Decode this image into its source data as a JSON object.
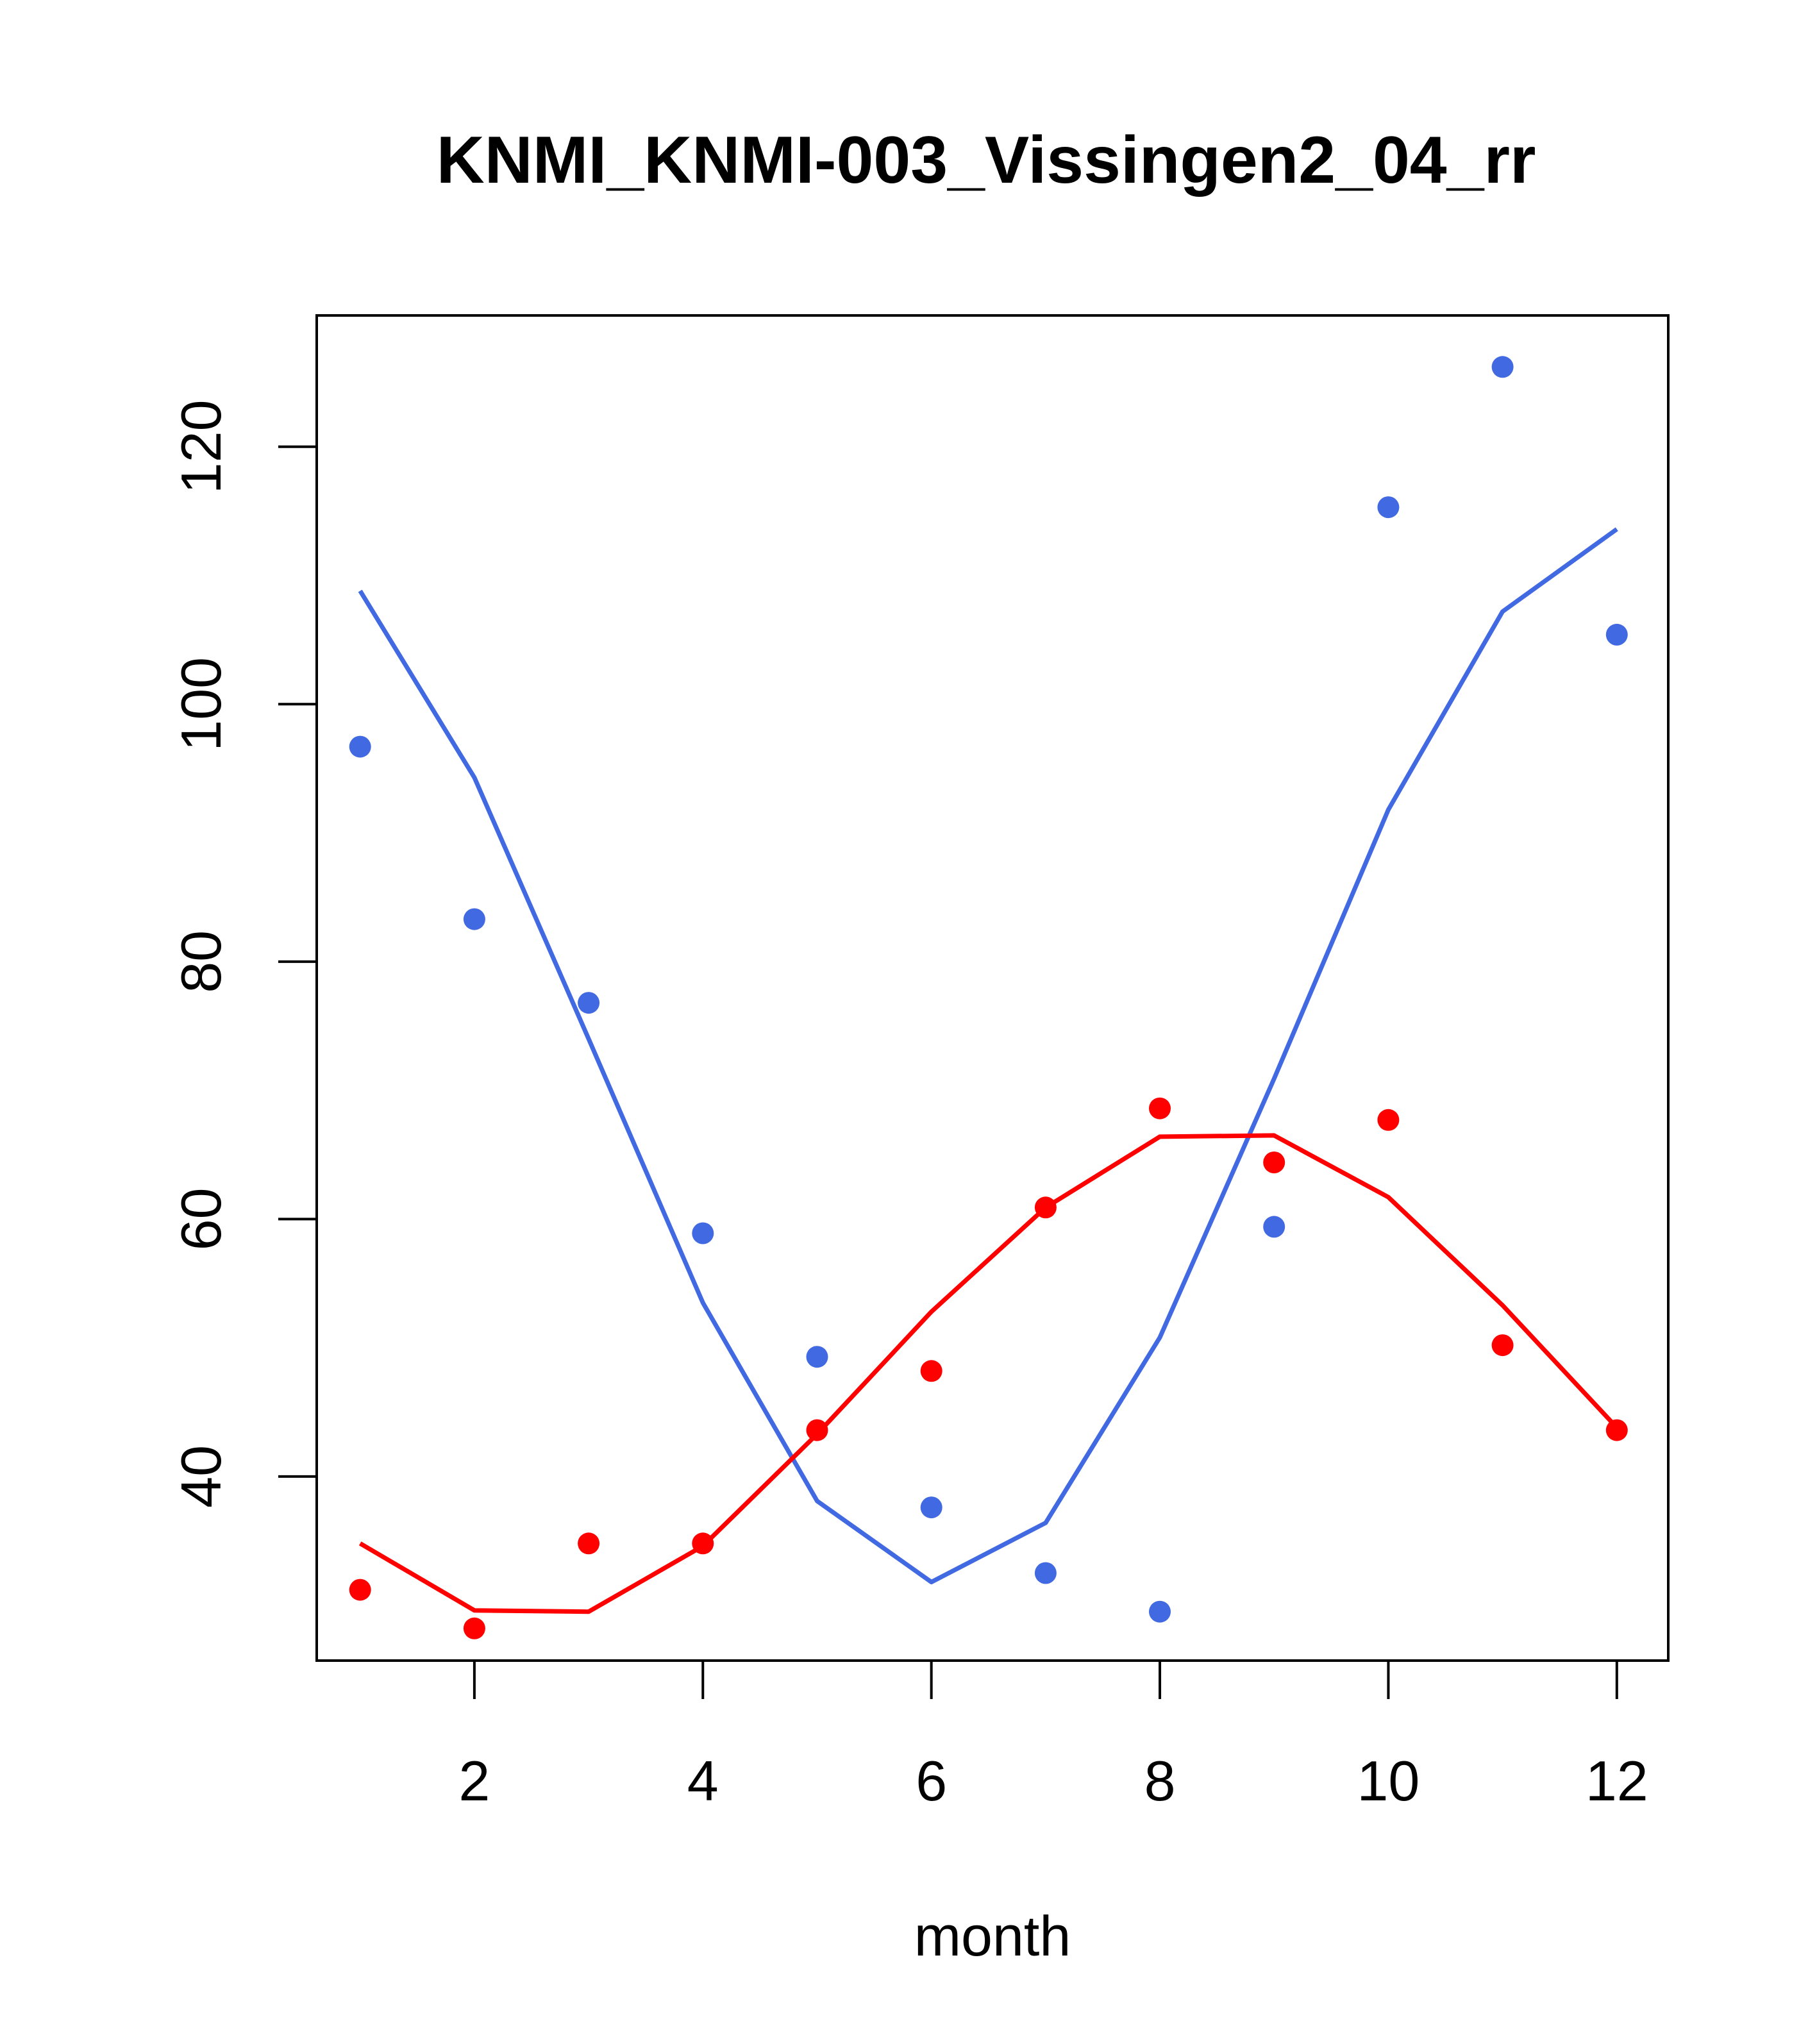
{
  "chart_data": {
    "type": "line",
    "title": "KNMI_KNMI-003_Vissingen2_04_rr",
    "xlabel": "month",
    "ylabel": "",
    "x": [
      1,
      2,
      3,
      4,
      5,
      6,
      7,
      8,
      9,
      10,
      11,
      12
    ],
    "xlim": [
      0.62,
      12.45
    ],
    "ylim": [
      25.7,
      130.2
    ],
    "x_ticks": [
      2,
      4,
      6,
      8,
      10,
      12
    ],
    "y_ticks": [
      40,
      60,
      80,
      100,
      120
    ],
    "grid": false,
    "legend": "none",
    "series": [
      {
        "color": "#4169E1",
        "points": [
          96.7,
          83.3,
          76.8,
          58.9,
          49.3,
          37.6,
          32.5,
          29.5,
          59.4,
          115.3,
          126.2,
          105.4
        ],
        "line": [
          108.8,
          94.3,
          74.0,
          53.5,
          38.1,
          31.8,
          36.4,
          50.8,
          70.9,
          91.8,
          107.2,
          113.6
        ]
      },
      {
        "color": "#FF0000",
        "points": [
          31.2,
          28.2,
          34.8,
          34.8,
          43.6,
          48.2,
          60.9,
          68.6,
          64.4,
          67.7,
          50.2,
          43.6
        ],
        "line": [
          34.8,
          29.6,
          29.5,
          34.6,
          43.3,
          52.8,
          60.9,
          66.4,
          66.5,
          61.7,
          53.3,
          43.8
        ]
      }
    ]
  }
}
